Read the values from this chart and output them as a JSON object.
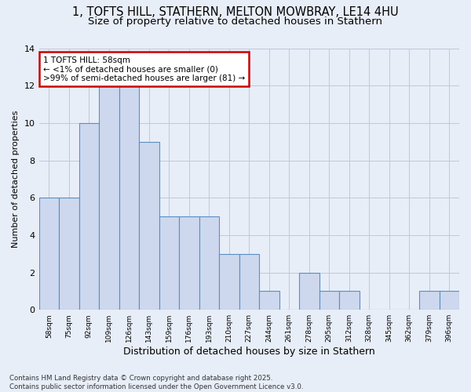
{
  "title1": "1, TOFTS HILL, STATHERN, MELTON MOWBRAY, LE14 4HU",
  "title2": "Size of property relative to detached houses in Stathern",
  "xlabel": "Distribution of detached houses by size in Stathern",
  "ylabel": "Number of detached properties",
  "bin_labels": [
    "58sqm",
    "75sqm",
    "92sqm",
    "109sqm",
    "126sqm",
    "143sqm",
    "159sqm",
    "176sqm",
    "193sqm",
    "210sqm",
    "227sqm",
    "244sqm",
    "261sqm",
    "278sqm",
    "295sqm",
    "312sqm",
    "328sqm",
    "345sqm",
    "362sqm",
    "379sqm",
    "396sqm"
  ],
  "bar_heights": [
    6,
    6,
    10,
    12,
    12,
    9,
    5,
    5,
    5,
    3,
    3,
    1,
    0,
    2,
    1,
    1,
    0,
    0,
    0,
    1,
    1
  ],
  "bar_color": "#cdd8ee",
  "bar_edge_color": "#5b8ec4",
  "bg_color": "#e8eef8",
  "plot_bg_color": "#e8eef8",
  "grid_color": "#c0c8d8",
  "annotation_box_text": "1 TOFTS HILL: 58sqm\n← <1% of detached houses are smaller (0)\n>99% of semi-detached houses are larger (81) →",
  "annotation_box_color": "#ffffff",
  "annotation_box_edge_color": "#cc0000",
  "footer_text": "Contains HM Land Registry data © Crown copyright and database right 2025.\nContains public sector information licensed under the Open Government Licence v3.0.",
  "ylim": [
    0,
    14
  ],
  "yticks": [
    0,
    2,
    4,
    6,
    8,
    10,
    12,
    14
  ]
}
